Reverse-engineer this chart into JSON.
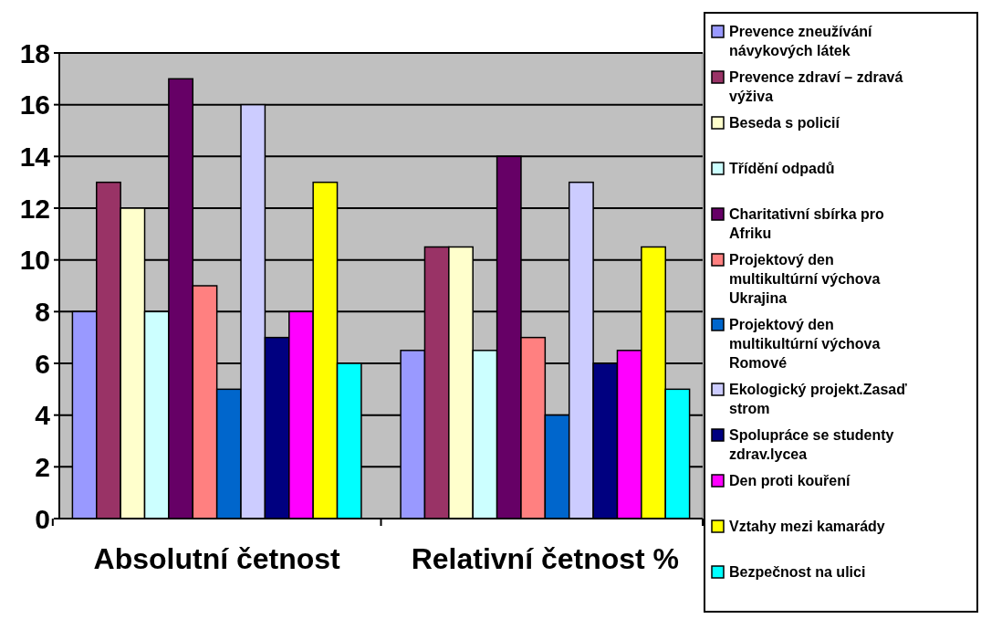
{
  "chart_data": {
    "type": "bar",
    "categories": [
      "Absolutní četnost",
      "Relativní četnost %"
    ],
    "series": [
      {
        "name": "Prevence zneužívání návykových látek",
        "color": "#9999ff",
        "values": [
          8,
          6.5
        ]
      },
      {
        "name": "Prevence zdraví – zdravá výživa",
        "color": "#993366",
        "values": [
          13,
          10.5
        ]
      },
      {
        "name": "Beseda s policií",
        "color": "#ffffcc",
        "values": [
          12,
          10.5
        ]
      },
      {
        "name": "Třídění odpadů",
        "color": "#ccffff",
        "values": [
          8,
          6.5
        ]
      },
      {
        "name": "Charitativní sbírka pro Afriku",
        "color": "#660066",
        "values": [
          17,
          14
        ]
      },
      {
        "name": "Projektový den multikultúrní výchova Ukrajina",
        "color": "#ff8080",
        "values": [
          9,
          7
        ]
      },
      {
        "name": "Projektový den multikultúrní výchova Romové",
        "color": "#0066cc",
        "values": [
          5,
          4
        ]
      },
      {
        "name": "Ekologický projekt.Zasaď strom",
        "color": "#ccccff",
        "values": [
          16,
          13
        ]
      },
      {
        "name": "Spolupráce se studenty zdrav.lycea",
        "color": "#000080",
        "values": [
          7,
          6
        ]
      },
      {
        "name": "Den proti kouření",
        "color": "#ff00ff",
        "values": [
          8,
          6.5
        ]
      },
      {
        "name": "Vztahy mezi kamarády",
        "color": "#ffff00",
        "values": [
          13,
          10.5
        ]
      },
      {
        "name": "Bezpečnost na ulici",
        "color": "#00ffff",
        "values": [
          6,
          5
        ]
      }
    ],
    "ylim": [
      0,
      18
    ],
    "yticks": [
      0,
      2,
      4,
      6,
      8,
      10,
      12,
      14,
      16,
      18
    ],
    "grid": "y",
    "legend": "right"
  }
}
